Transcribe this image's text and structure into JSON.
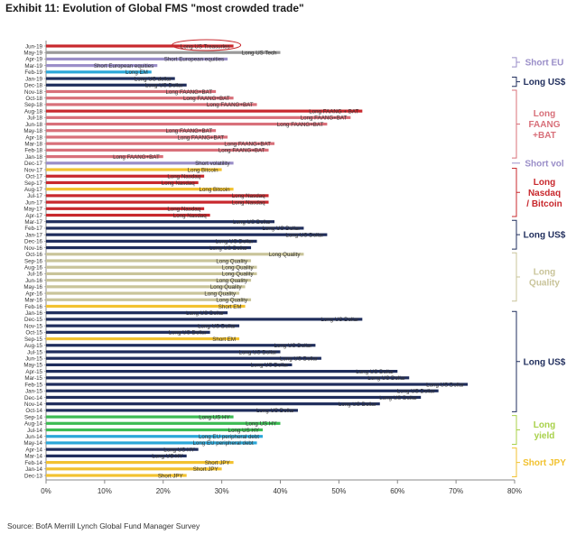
{
  "title": "Exhibit 11: Evolution of Global FMS \"most crowded trade\"",
  "source": "Source: BofA Merrill Lynch Global Fund Manager Survey",
  "colors": {
    "navy": "#1f2d5c",
    "red": "#c8282d",
    "lightred": "#d8707a",
    "lavender": "#9a8ec8",
    "olive": "#c9c49a",
    "green": "#3dbb54",
    "lime": "#a8d14a",
    "cyan": "#2ba7d8",
    "yellow": "#f2c230",
    "gray": "#999999"
  },
  "chart_data": {
    "type": "bar",
    "orientation": "horizontal",
    "title": "Exhibit 11: Evolution of Global FMS \"most crowded trade\"",
    "xlabel": "",
    "ylabel": "",
    "xlim": [
      0,
      80
    ],
    "x_ticks": [
      "0%",
      "10%",
      "20%",
      "30%",
      "40%",
      "50%",
      "60%",
      "70%",
      "80%"
    ],
    "grid": false,
    "value_unit": "%",
    "categories": [
      "Jun-19",
      "May-19",
      "Apr-19",
      "Mar-19",
      "Feb-19",
      "Jan-19",
      "Dec-18",
      "Nov-18",
      "Oct-18",
      "Sep-18",
      "Aug-18",
      "Jul-18",
      "Jun-18",
      "May-18",
      "Apr-18",
      "Mar-18",
      "Feb-18",
      "Jan-18",
      "Dec-17",
      "Nov-17",
      "Oct-17",
      "Sep-17",
      "Aug-17",
      "Jul-17",
      "Jun-17",
      "May-17",
      "Apr-17",
      "Mar-17",
      "Feb-17",
      "Jan-17",
      "Dec-16",
      "Nov-16",
      "Oct-16",
      "Sep-16",
      "Aug-16",
      "Jul-16",
      "Jun-16",
      "May-16",
      "Apr-16",
      "Mar-16",
      "Feb-16",
      "Jan-16",
      "Dec-15",
      "Nov-15",
      "Oct-15",
      "Sep-15",
      "Aug-15",
      "Jul-15",
      "Jun-15",
      "May-15",
      "Apr-15",
      "Mar-15",
      "Feb-15",
      "Jan-15",
      "Dec-14",
      "Nov-14",
      "Oct-14",
      "Sep-14",
      "Aug-14",
      "Jul-14",
      "Jun-14",
      "May-14",
      "Apr-14",
      "Mar-14",
      "Feb-14",
      "Jan-14",
      "Dec-13"
    ],
    "values": [
      32,
      40,
      31,
      19,
      18,
      22,
      24,
      29,
      32,
      36,
      54,
      52,
      48,
      29,
      31,
      39,
      38,
      20,
      32,
      30,
      27,
      26,
      32,
      38,
      38,
      27,
      28,
      39,
      44,
      48,
      36,
      35,
      44,
      35,
      36,
      36,
      35,
      34,
      33,
      35,
      34,
      31,
      54,
      33,
      28,
      33,
      46,
      40,
      47,
      42,
      60,
      62,
      72,
      67,
      64,
      57,
      43,
      32,
      40,
      37,
      37,
      36,
      26,
      24,
      32,
      30,
      24
    ],
    "labels": [
      "Long US Treasuries",
      "Long US Tech",
      "Short European equities",
      "Short European equities",
      "Long EM",
      "Long US dollar",
      "Long US Dollar",
      "Long FAANG+BAT",
      "Long FAANG+BAT",
      "Long FAANG+BAT",
      "Long FAANG + BAT",
      "Long FAANG+BAT",
      "Long FAANG+BAT",
      "Long FAANG+BAT",
      "Long FAANG+BAT",
      "Long FAANG+BAT",
      "Long FAANG+BAT",
      "Long FAANG+BAT",
      "Short volatility",
      "Long Bitcoin",
      "Long Nasdaq",
      "Long Nasdaq",
      "Long Bitcoin",
      "Long Nasdaq",
      "Long Nasdaq",
      "Long Nasdaq",
      "Long Nasdaq",
      "Long US Dollar",
      "Long US Dollar",
      "Long US Dollar",
      "Long US Dollar",
      "Long US Dollar",
      "Long Quality",
      "Long Quality",
      "Long Quality",
      "Long Quality",
      "Long Quality",
      "Long Quality",
      "Long Quality",
      "Long Quality",
      "Short EM",
      "Long US Dollar",
      "Long US Dollar",
      "Long US Dollar",
      "Long US Dollar",
      "Short EM",
      "Long US Dollar",
      "Long US Dollar",
      "Long US Dollar",
      "Long US Dollar",
      "Long US Dollar",
      "Long US Dollar",
      "Long US Dollar",
      "Long US Dollar",
      "Long US Dollar",
      "Long US Dollar",
      "Long US Dollar",
      "Long US HY",
      "Long US HY",
      "Long US HY",
      "Long EU peripheral debt",
      "Long EU peripheral debt",
      "Long US HY",
      "Long US HY",
      "Short JPY",
      "Short JPY",
      "Short JPY"
    ],
    "bar_colors": [
      "red",
      "gray",
      "lavender",
      "lavender",
      "cyan",
      "navy",
      "navy",
      "lightred",
      "lightred",
      "lightred",
      "red",
      "lightred",
      "lightred",
      "lightred",
      "lightred",
      "lightred",
      "lightred",
      "lightred",
      "lavender",
      "yellow",
      "red",
      "red",
      "yellow",
      "red",
      "red",
      "red",
      "red",
      "navy",
      "navy",
      "navy",
      "navy",
      "navy",
      "olive",
      "olive",
      "olive",
      "olive",
      "olive",
      "olive",
      "olive",
      "olive",
      "yellow",
      "navy",
      "navy",
      "navy",
      "navy",
      "yellow",
      "navy",
      "navy",
      "navy",
      "navy",
      "navy",
      "navy",
      "navy",
      "navy",
      "navy",
      "navy",
      "navy",
      "green",
      "green",
      "green",
      "cyan",
      "cyan",
      "navy",
      "navy",
      "yellow",
      "yellow",
      "yellow"
    ],
    "highlight": "Long US Treasuries",
    "groups": [
      {
        "label": "Short EU",
        "color": "lavender",
        "from": 2,
        "to": 3
      },
      {
        "label": "Long US$",
        "color": "navy",
        "from": 5,
        "to": 6
      },
      {
        "label": "Long FAANG +BAT",
        "color": "lightred",
        "from": 7,
        "to": 17
      },
      {
        "label": "Short vol",
        "color": "lavender",
        "from": 18,
        "to": 18
      },
      {
        "label": "Long Nasdaq / Bitcoin",
        "color": "red",
        "from": 19,
        "to": 26
      },
      {
        "label": "Long US$",
        "color": "navy",
        "from": 27,
        "to": 31
      },
      {
        "label": "Long Quality",
        "color": "olive",
        "from": 32,
        "to": 39
      },
      {
        "label": "Long US$",
        "color": "navy",
        "from": 41,
        "to": 56
      },
      {
        "label": "Long yield",
        "color": "lime",
        "from": 57,
        "to": 61
      },
      {
        "label": "Short JPY",
        "color": "yellow",
        "from": 62,
        "to": 66
      }
    ]
  }
}
